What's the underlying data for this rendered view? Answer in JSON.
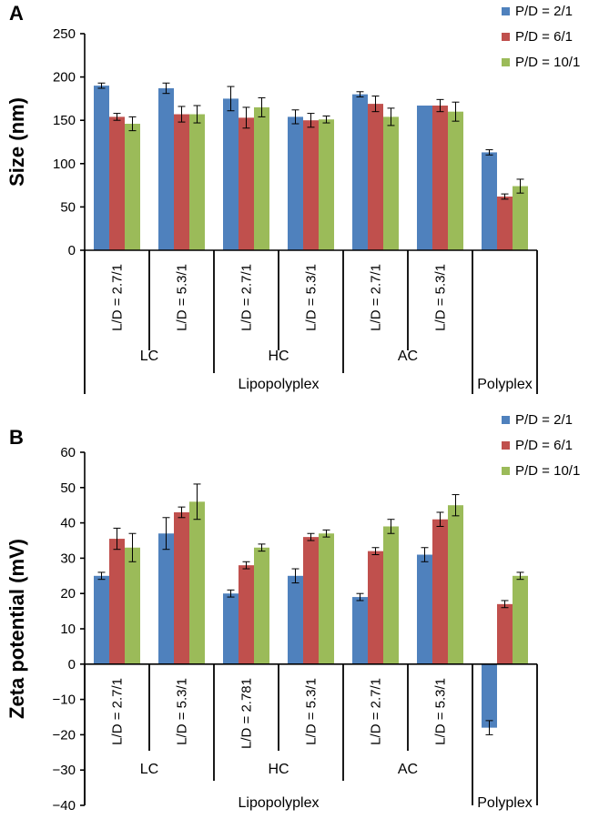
{
  "chart_data": [
    {
      "type": "bar",
      "panel_label": "A",
      "ylabel": "Size (nm)",
      "ylim": [
        0,
        250
      ],
      "yticks": [
        0,
        50,
        100,
        150,
        200,
        250
      ],
      "categories": [
        "L/D = 2.7/1",
        "L/D = 5.3/1",
        "L/D = 2.7/1",
        "L/D = 5.3/1",
        "L/D = 2.7/1",
        "L/D = 5.3/1",
        ""
      ],
      "subgroups": [
        {
          "label": "LC",
          "span": [
            0,
            1
          ]
        },
        {
          "label": "HC",
          "span": [
            2,
            3
          ]
        },
        {
          "label": "AC",
          "span": [
            4,
            5
          ]
        }
      ],
      "groups": [
        {
          "label": "Lipopolyplex",
          "span": [
            0,
            5
          ]
        },
        {
          "label": "Polyplex",
          "span": [
            6,
            6
          ]
        }
      ],
      "legend": [
        "P/D = 2/1",
        "P/D = 6/1",
        "P/D = 10/1"
      ],
      "colors": [
        "#4f81bd",
        "#c0504d",
        "#9bbb59"
      ],
      "series": [
        {
          "name": "P/D = 2/1",
          "values": [
            190,
            187,
            175,
            154,
            180,
            167,
            113
          ],
          "errors": [
            3,
            6,
            14,
            8,
            3,
            0,
            3
          ]
        },
        {
          "name": "P/D = 6/1",
          "values": [
            154,
            157,
            153,
            150,
            169,
            167,
            62
          ],
          "errors": [
            4,
            9,
            12,
            8,
            9,
            7,
            3
          ]
        },
        {
          "name": "P/D = 10/1",
          "values": [
            146,
            157,
            165,
            151,
            154,
            160,
            74
          ],
          "errors": [
            8,
            10,
            11,
            4,
            10,
            11,
            8
          ]
        }
      ]
    },
    {
      "type": "bar",
      "panel_label": "B",
      "ylabel": "Zeta potential (mV)",
      "ylim": [
        -40,
        60
      ],
      "yticks": [
        -40,
        -30,
        -20,
        -10,
        0,
        10,
        20,
        30,
        40,
        50,
        60
      ],
      "categories": [
        "L/D = 2.7/1",
        "L/D = 5.3/1",
        "L/D = 2.781",
        "L/D = 5.3/1",
        "L/D = 2.7/1",
        "L/D = 5.3/1",
        ""
      ],
      "subgroups": [
        {
          "label": "LC",
          "span": [
            0,
            1
          ]
        },
        {
          "label": "HC",
          "span": [
            2,
            3
          ]
        },
        {
          "label": "AC",
          "span": [
            4,
            5
          ]
        }
      ],
      "groups": [
        {
          "label": "Lipopolyplex",
          "span": [
            0,
            5
          ]
        },
        {
          "label": "Polyplex",
          "span": [
            6,
            6
          ]
        }
      ],
      "legend": [
        "P/D = 2/1",
        "P/D = 6/1",
        "P/D = 10/1"
      ],
      "colors": [
        "#4f81bd",
        "#c0504d",
        "#9bbb59"
      ],
      "series": [
        {
          "name": "P/D = 2/1",
          "values": [
            25,
            37,
            20,
            25,
            19,
            31,
            -18
          ],
          "errors": [
            1,
            4.5,
            1,
            2,
            1,
            2,
            2
          ]
        },
        {
          "name": "P/D = 6/1",
          "values": [
            35.5,
            43,
            28,
            36,
            32,
            41,
            17
          ],
          "errors": [
            3,
            1.5,
            1,
            1,
            1,
            2,
            1
          ]
        },
        {
          "name": "P/D = 10/1",
          "values": [
            33,
            46,
            33,
            37,
            39,
            45,
            25
          ],
          "errors": [
            4,
            5,
            1,
            1,
            2,
            3,
            1
          ]
        }
      ]
    }
  ]
}
